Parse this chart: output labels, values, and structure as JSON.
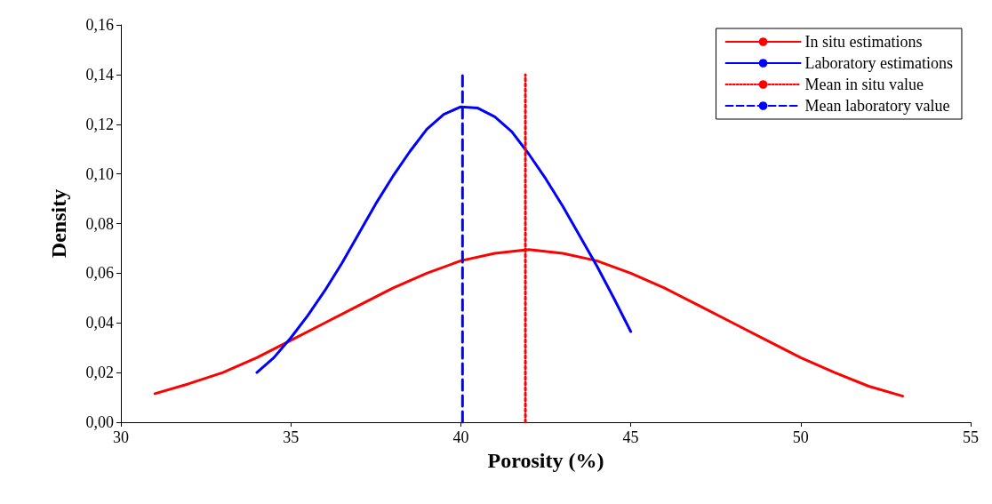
{
  "chart_data": {
    "type": "line",
    "xlabel": "Porosity (%)",
    "ylabel": "Density",
    "xlim": [
      30,
      55
    ],
    "xticks": [
      30,
      35,
      40,
      45,
      50,
      55
    ],
    "ylim": [
      0,
      0.16
    ],
    "yticks": [
      {
        "value": 0,
        "label": "0,00"
      },
      {
        "value": 0.02,
        "label": "0,02"
      },
      {
        "value": 0.04,
        "label": "0,04"
      },
      {
        "value": 0.06,
        "label": "0,06"
      },
      {
        "value": 0.08,
        "label": "0,08"
      },
      {
        "value": 0.1,
        "label": "0,10"
      },
      {
        "value": 0.12,
        "label": "0,12"
      },
      {
        "value": 0.14,
        "label": "0,14"
      },
      {
        "value": 0.16,
        "label": "0,16"
      }
    ],
    "grid": false,
    "legend": "top right",
    "marker": "none",
    "series": [
      {
        "name": "In situ estimations",
        "color": "#ff0000",
        "line_style": "solid",
        "x": [
          31,
          32,
          33,
          34,
          35,
          36,
          37,
          38,
          39,
          40,
          41,
          42,
          43,
          44,
          45,
          46,
          47,
          48,
          49,
          50,
          51,
          52,
          53
        ],
        "values": [
          0.0115,
          0.0155,
          0.02,
          0.026,
          0.033,
          0.04,
          0.047,
          0.054,
          0.06,
          0.065,
          0.068,
          0.0695,
          0.068,
          0.065,
          0.06,
          0.054,
          0.047,
          0.04,
          0.033,
          0.026,
          0.02,
          0.0145,
          0.0105
        ]
      },
      {
        "name": "Laboratory estimations",
        "color": "#0000ff",
        "line_style": "solid",
        "x": [
          34,
          34.5,
          35,
          35.5,
          36,
          36.5,
          37,
          37.5,
          38,
          38.5,
          39,
          39.5,
          40,
          40.5,
          41,
          41.5,
          42,
          42.5,
          43,
          43.5,
          44,
          44.5,
          45
        ],
        "values": [
          0.02,
          0.026,
          0.034,
          0.043,
          0.053,
          0.064,
          0.076,
          0.088,
          0.099,
          0.109,
          0.118,
          0.124,
          0.127,
          0.1265,
          0.123,
          0.117,
          0.108,
          0.098,
          0.087,
          0.075,
          0.063,
          0.05,
          0.0365
        ]
      },
      {
        "name": "Mean in situ value",
        "color": "#ff0000",
        "line_style": "dotted",
        "x": [
          41.9,
          41.9
        ],
        "values": [
          0,
          0.14
        ]
      },
      {
        "name": "Mean laboratory value",
        "color": "#0000ff",
        "line_style": "dashed",
        "x": [
          40.05,
          40.05
        ],
        "values": [
          0,
          0.14
        ]
      }
    ]
  }
}
